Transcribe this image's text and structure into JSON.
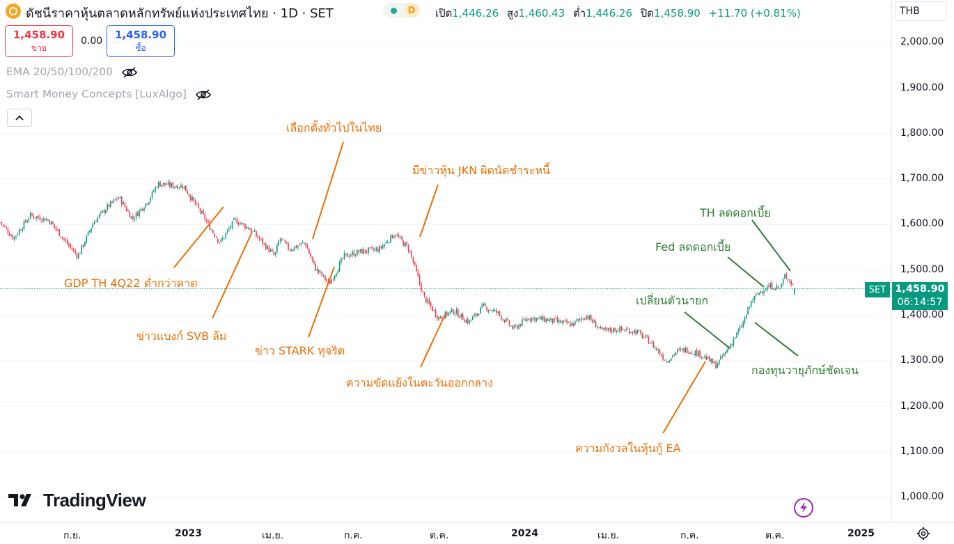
{
  "header": {
    "title": "ดัชนีราคาหุ้นตลาดหลักทรัพย์แห่งประเทศไทย · 1D · SET",
    "status_letter": "D",
    "ohlc": {
      "open_label": "เปิด",
      "open": "1,446.26",
      "high_label": "สูง",
      "high": "1,460.43",
      "low_label": "ต่ำ",
      "low": "1,446.26",
      "close_label": "ปิด",
      "close": "1,458.90",
      "change": "+11.70 (+0.81%)"
    },
    "currency": "THB"
  },
  "trade": {
    "sell_price": "1,458.90",
    "sell_label": "ขาย",
    "spread": "0.00",
    "buy_price": "1,458.90",
    "buy_label": "ซื้อ"
  },
  "indicators": [
    {
      "label": "EMA 20/50/100/200"
    },
    {
      "label": "Smart Money Concepts [LuxAlgo]"
    }
  ],
  "annotations": [
    {
      "text": "GDP TH 4Q22 ต่ำกว่าคาด",
      "color": "orange"
    },
    {
      "text": "ข่าวแบงก์ SVB ล้ม",
      "color": "orange"
    },
    {
      "text": "เลือกตั้งทั่วไปในไทย",
      "color": "orange"
    },
    {
      "text": "ข่าว STARK ทุจริต",
      "color": "orange"
    },
    {
      "text": "มีข่าวหุ้น JKN ผิดนัดชำระหนี้",
      "color": "orange"
    },
    {
      "text": "ความขัดแย้งในตะวันออกกลาง",
      "color": "orange"
    },
    {
      "text": "ความกังวลในหุ้นกู้ EA",
      "color": "orange"
    },
    {
      "text": "เปลี่ยนตัวนายก",
      "color": "green"
    },
    {
      "text": "Fed ลดดอกเบี้ย",
      "color": "green"
    },
    {
      "text": "TH ลดดอกเบี้ย",
      "color": "green"
    },
    {
      "text": "กองทุนวายุภักษ์ชัดเจน",
      "color": "green"
    }
  ],
  "price_axis": [
    "2,000.00",
    "1,900.00",
    "1,800.00",
    "1,700.00",
    "1,600.00",
    "1,500.00",
    "1,400.00",
    "1,300.00",
    "1,200.00",
    "1,100.00",
    "1,000.00"
  ],
  "time_axis": [
    {
      "label": "ก.ย.",
      "bold": false
    },
    {
      "label": "2023",
      "bold": true
    },
    {
      "label": "เม.ย.",
      "bold": false
    },
    {
      "label": "ก.ค.",
      "bold": false
    },
    {
      "label": "ต.ค.",
      "bold": false
    },
    {
      "label": "2024",
      "bold": true
    },
    {
      "label": "เม.ย.",
      "bold": false
    },
    {
      "label": "ก.ค.",
      "bold": false
    },
    {
      "label": "ต.ค.",
      "bold": false
    },
    {
      "label": "2025",
      "bold": true
    }
  ],
  "last_price": {
    "symbol": "SET",
    "price": "1,458.90",
    "countdown": "06:14:57"
  },
  "branding": {
    "name": "TradingView"
  },
  "colors": {
    "up": "#089981",
    "down": "#f23645",
    "orange": "#ef6c00",
    "green": "#2e7d32",
    "accent": "#2962ff"
  },
  "chart_data": {
    "type": "candlestick",
    "symbol": "SET",
    "ylim": [
      1000,
      2000
    ],
    "close_path": [
      {
        "date": "2022-08-01",
        "value": 1605
      },
      {
        "date": "2022-08-15",
        "value": 1570
      },
      {
        "date": "2022-09-01",
        "value": 1620
      },
      {
        "date": "2022-09-20",
        "value": 1610
      },
      {
        "date": "2022-10-10",
        "value": 1555
      },
      {
        "date": "2022-10-20",
        "value": 1530
      },
      {
        "date": "2022-11-05",
        "value": 1605
      },
      {
        "date": "2022-11-20",
        "value": 1640
      },
      {
        "date": "2022-12-01",
        "value": 1660
      },
      {
        "date": "2022-12-15",
        "value": 1612
      },
      {
        "date": "2023-01-01",
        "value": 1655
      },
      {
        "date": "2023-01-10",
        "value": 1690
      },
      {
        "date": "2023-01-25",
        "value": 1685
      },
      {
        "date": "2023-02-05",
        "value": 1685
      },
      {
        "date": "2023-02-25",
        "value": 1620
      },
      {
        "date": "2023-03-10",
        "value": 1575
      },
      {
        "date": "2023-03-15",
        "value": 1560
      },
      {
        "date": "2023-03-30",
        "value": 1610
      },
      {
        "date": "2023-04-15",
        "value": 1590
      },
      {
        "date": "2023-05-10",
        "value": 1530
      },
      {
        "date": "2023-05-15",
        "value": 1570
      },
      {
        "date": "2023-05-25",
        "value": 1545
      },
      {
        "date": "2023-06-10",
        "value": 1560
      },
      {
        "date": "2023-06-20",
        "value": 1505
      },
      {
        "date": "2023-07-05",
        "value": 1470
      },
      {
        "date": "2023-07-20",
        "value": 1530
      },
      {
        "date": "2023-08-05",
        "value": 1540
      },
      {
        "date": "2023-08-25",
        "value": 1545
      },
      {
        "date": "2023-09-10",
        "value": 1580
      },
      {
        "date": "2023-09-25",
        "value": 1545
      },
      {
        "date": "2023-10-10",
        "value": 1440
      },
      {
        "date": "2023-10-25",
        "value": 1395
      },
      {
        "date": "2023-11-10",
        "value": 1410
      },
      {
        "date": "2023-11-25",
        "value": 1385
      },
      {
        "date": "2023-12-10",
        "value": 1420
      },
      {
        "date": "2023-12-25",
        "value": 1405
      },
      {
        "date": "2024-01-10",
        "value": 1370
      },
      {
        "date": "2024-01-25",
        "value": 1395
      },
      {
        "date": "2024-02-15",
        "value": 1390
      },
      {
        "date": "2024-03-10",
        "value": 1380
      },
      {
        "date": "2024-03-25",
        "value": 1400
      },
      {
        "date": "2024-04-10",
        "value": 1365
      },
      {
        "date": "2024-04-25",
        "value": 1370
      },
      {
        "date": "2024-05-15",
        "value": 1365
      },
      {
        "date": "2024-05-30",
        "value": 1340
      },
      {
        "date": "2024-06-15",
        "value": 1300
      },
      {
        "date": "2024-06-25",
        "value": 1320
      },
      {
        "date": "2024-07-05",
        "value": 1325
      },
      {
        "date": "2024-07-20",
        "value": 1315
      },
      {
        "date": "2024-08-05",
        "value": 1290
      },
      {
        "date": "2024-08-15",
        "value": 1320
      },
      {
        "date": "2024-09-01",
        "value": 1380
      },
      {
        "date": "2024-09-10",
        "value": 1430
      },
      {
        "date": "2024-09-20",
        "value": 1455
      },
      {
        "date": "2024-09-30",
        "value": 1465
      },
      {
        "date": "2024-10-10",
        "value": 1460
      },
      {
        "date": "2024-10-15",
        "value": 1490
      },
      {
        "date": "2024-10-25",
        "value": 1458.9
      }
    ],
    "last": {
      "open": 1446.26,
      "high": 1460.43,
      "low": 1446.26,
      "close": 1458.9
    }
  }
}
